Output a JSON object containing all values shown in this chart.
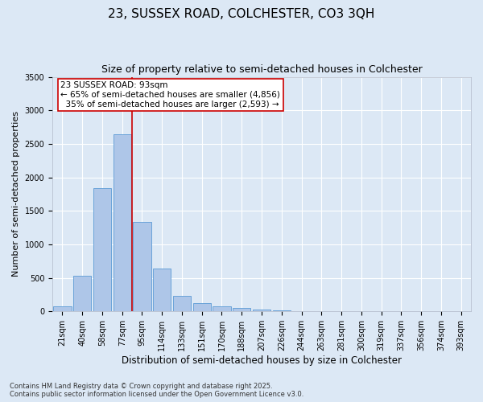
{
  "title": "23, SUSSEX ROAD, COLCHESTER, CO3 3QH",
  "subtitle": "Size of property relative to semi-detached houses in Colchester",
  "xlabel": "Distribution of semi-detached houses by size in Colchester",
  "ylabel": "Number of semi-detached properties",
  "categories": [
    "21sqm",
    "40sqm",
    "58sqm",
    "77sqm",
    "95sqm",
    "114sqm",
    "133sqm",
    "151sqm",
    "170sqm",
    "188sqm",
    "207sqm",
    "226sqm",
    "244sqm",
    "263sqm",
    "281sqm",
    "300sqm",
    "319sqm",
    "337sqm",
    "356sqm",
    "374sqm",
    "393sqm"
  ],
  "values": [
    80,
    530,
    1840,
    2640,
    1330,
    640,
    230,
    120,
    75,
    50,
    30,
    15,
    8,
    4,
    2,
    1,
    1,
    0,
    0,
    0,
    0
  ],
  "bar_color": "#aec6e8",
  "bar_edge_color": "#5b9bd5",
  "vline_color": "#cc0000",
  "vline_pos": 3.5,
  "property_sqm": "93sqm",
  "property_name": "23 SUSSEX ROAD",
  "pct_smaller": 65,
  "count_smaller": 4856,
  "pct_larger": 35,
  "count_larger": 2593,
  "ylim": [
    0,
    3500
  ],
  "yticks": [
    0,
    500,
    1000,
    1500,
    2000,
    2500,
    3000,
    3500
  ],
  "annotation_box_color": "#ffffff",
  "annotation_box_edge": "#cc0000",
  "footer_line1": "Contains HM Land Registry data © Crown copyright and database right 2025.",
  "footer_line2": "Contains public sector information licensed under the Open Government Licence v3.0.",
  "background_color": "#dce8f5",
  "grid_color": "#ffffff",
  "title_fontsize": 11,
  "subtitle_fontsize": 9,
  "ylabel_fontsize": 8,
  "xlabel_fontsize": 8.5,
  "tick_fontsize": 7,
  "annot_fontsize": 7.5,
  "footer_fontsize": 6
}
